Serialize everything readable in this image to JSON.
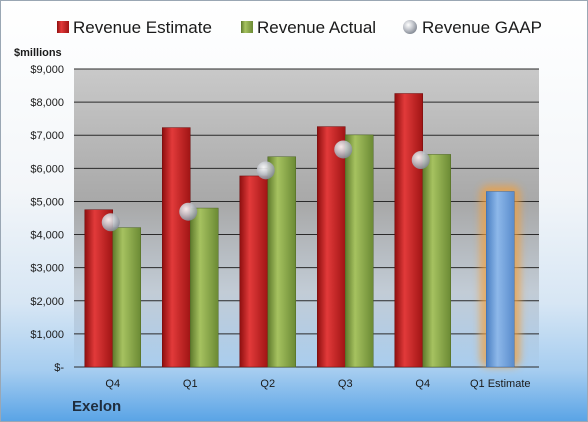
{
  "company": "Exelon",
  "chart_data": {
    "type": "bar",
    "unit_label": "$millions",
    "categories": [
      "Q4",
      "Q1",
      "Q2",
      "Q3",
      "Q4",
      "Q1 Estimate"
    ],
    "y_tick_labels": [
      "$-",
      "$1,000",
      "$2,000",
      "$3,000",
      "$4,000",
      "$5,000",
      "$6,000",
      "$7,000",
      "$8,000",
      "$9,000"
    ],
    "ylim": [
      0,
      9000
    ],
    "grid": true,
    "legend_position": "top",
    "series": [
      {
        "name": "Revenue Estimate",
        "kind": "bar",
        "color": "#cc2222",
        "values": [
          4750,
          7230,
          5770,
          7260,
          8260,
          null
        ]
      },
      {
        "name": "Revenue Actual",
        "kind": "bar",
        "color": "#8aa64a",
        "values": [
          4210,
          4800,
          6350,
          7010,
          6420,
          null
        ]
      },
      {
        "name": "Revenue GAAP",
        "kind": "marker",
        "color": "#b8bcc4",
        "values": [
          4370,
          4690,
          5940,
          6570,
          6250,
          null
        ]
      },
      {
        "name": "Q1 Estimate",
        "kind": "bar",
        "color": "#6f9fd8",
        "highlight": "#f0a040",
        "values": [
          null,
          null,
          null,
          null,
          null,
          5300
        ]
      }
    ]
  }
}
